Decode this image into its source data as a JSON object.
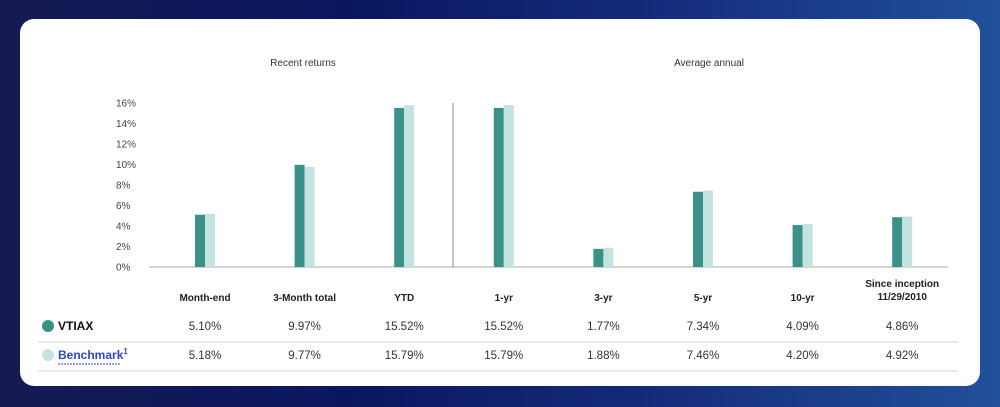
{
  "colors": {
    "fund": "#3a9188",
    "benchmark": "#c3e3e1"
  },
  "chart_data": {
    "type": "bar",
    "section_titles": [
      "Recent returns",
      "Average annual"
    ],
    "categories": [
      "Month-end",
      "3-Month total",
      "YTD",
      "1-yr",
      "3-yr",
      "5-yr",
      "10-yr",
      "Since inception 11/29/2010"
    ],
    "category_lines": [
      [
        "Month-end"
      ],
      [
        "3-Month total"
      ],
      [
        "YTD"
      ],
      [
        "1-yr"
      ],
      [
        "3-yr"
      ],
      [
        "5-yr"
      ],
      [
        "10-yr"
      ],
      [
        "Since inception",
        "11/29/2010"
      ]
    ],
    "series": [
      {
        "name": "VTIAX",
        "values": [
          5.1,
          9.97,
          15.52,
          15.52,
          1.77,
          7.34,
          4.09,
          4.86
        ],
        "labels": [
          "5.10%",
          "9.97%",
          "15.52%",
          "15.52%",
          "1.77%",
          "7.34%",
          "4.09%",
          "4.86%"
        ]
      },
      {
        "name": "Benchmark",
        "superscript": "1",
        "values": [
          5.18,
          9.77,
          15.79,
          15.79,
          1.88,
          7.46,
          4.2,
          4.92
        ],
        "labels": [
          "5.18%",
          "9.77%",
          "15.79%",
          "15.79%",
          "1.88%",
          "7.46%",
          "4.20%",
          "4.92%"
        ]
      }
    ],
    "yticks": [
      "0%",
      "2%",
      "4%",
      "6%",
      "8%",
      "10%",
      "12%",
      "14%",
      "16%"
    ],
    "ylim": [
      0,
      16
    ],
    "grid": false
  }
}
